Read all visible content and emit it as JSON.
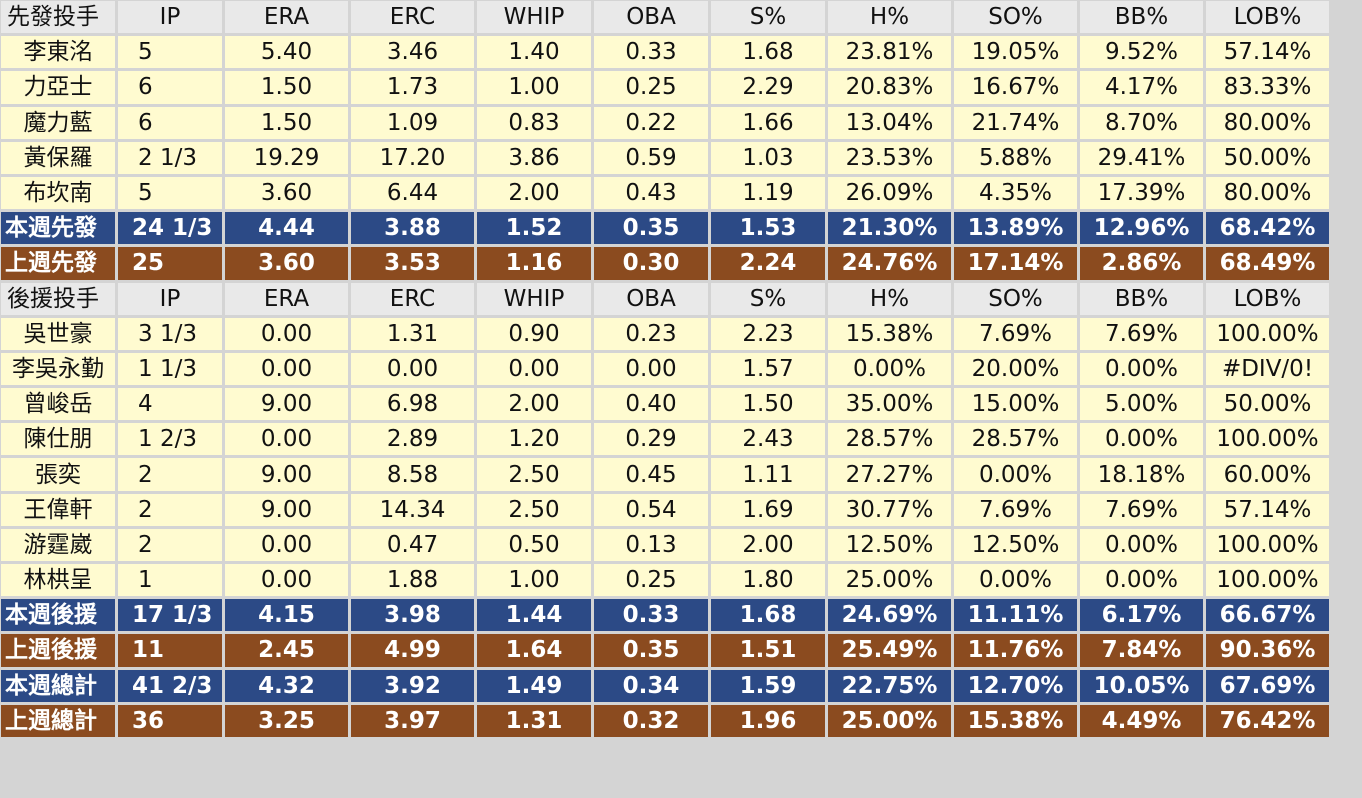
{
  "header_labels": [
    "IP",
    "ERA",
    "ERC",
    "WHIP",
    "OBA",
    "S%",
    "H%",
    "SO%",
    "BB%",
    "LOB%"
  ],
  "rows": [
    {
      "type": "header",
      "cells": [
        "先發投手",
        "IP",
        "ERA",
        "ERC",
        "WHIP",
        "OBA",
        "S%",
        "H%",
        "SO%",
        "BB%",
        "LOB%"
      ]
    },
    {
      "type": "player",
      "cells": [
        "李東洺",
        "5",
        "5.40",
        "3.46",
        "1.40",
        "0.33",
        "1.68",
        "23.81%",
        "19.05%",
        "9.52%",
        "57.14%"
      ]
    },
    {
      "type": "player",
      "cells": [
        "力亞士",
        "6",
        "1.50",
        "1.73",
        "1.00",
        "0.25",
        "2.29",
        "20.83%",
        "16.67%",
        "4.17%",
        "83.33%"
      ]
    },
    {
      "type": "player",
      "cells": [
        "魔力藍",
        "6",
        "1.50",
        "1.09",
        "0.83",
        "0.22",
        "1.66",
        "13.04%",
        "21.74%",
        "8.70%",
        "80.00%"
      ]
    },
    {
      "type": "player",
      "cells": [
        "黃保羅",
        "2 1/3",
        "19.29",
        "17.20",
        "3.86",
        "0.59",
        "1.03",
        "23.53%",
        "5.88%",
        "29.41%",
        "50.00%"
      ]
    },
    {
      "type": "player",
      "cells": [
        "布坎南",
        "5",
        "3.60",
        "6.44",
        "2.00",
        "0.43",
        "1.19",
        "26.09%",
        "4.35%",
        "17.39%",
        "80.00%"
      ]
    },
    {
      "type": "blue",
      "cells": [
        "本週先發",
        "24 1/3",
        "4.44",
        "3.88",
        "1.52",
        "0.35",
        "1.53",
        "21.30%",
        "13.89%",
        "12.96%",
        "68.42%"
      ]
    },
    {
      "type": "brown",
      "cells": [
        "上週先發",
        "25",
        "3.60",
        "3.53",
        "1.16",
        "0.30",
        "2.24",
        "24.76%",
        "17.14%",
        "2.86%",
        "68.49%"
      ]
    },
    {
      "type": "header",
      "cells": [
        "後援投手",
        "IP",
        "ERA",
        "ERC",
        "WHIP",
        "OBA",
        "S%",
        "H%",
        "SO%",
        "BB%",
        "LOB%"
      ]
    },
    {
      "type": "player",
      "cells": [
        "吳世豪",
        "3 1/3",
        "0.00",
        "1.31",
        "0.90",
        "0.23",
        "2.23",
        "15.38%",
        "7.69%",
        "7.69%",
        "100.00%"
      ]
    },
    {
      "type": "player",
      "cells": [
        "李吳永勤",
        "1 1/3",
        "0.00",
        "0.00",
        "0.00",
        "0.00",
        "1.57",
        "0.00%",
        "20.00%",
        "0.00%",
        "#DIV/0!"
      ]
    },
    {
      "type": "player",
      "cells": [
        "曾峻岳",
        "4",
        "9.00",
        "6.98",
        "2.00",
        "0.40",
        "1.50",
        "35.00%",
        "15.00%",
        "5.00%",
        "50.00%"
      ]
    },
    {
      "type": "player",
      "cells": [
        "陳仕朋",
        "1 2/3",
        "0.00",
        "2.89",
        "1.20",
        "0.29",
        "2.43",
        "28.57%",
        "28.57%",
        "0.00%",
        "100.00%"
      ]
    },
    {
      "type": "player",
      "cells": [
        "張奕",
        "2",
        "9.00",
        "8.58",
        "2.50",
        "0.45",
        "1.11",
        "27.27%",
        "0.00%",
        "18.18%",
        "60.00%"
      ]
    },
    {
      "type": "player",
      "cells": [
        "王偉軒",
        "2",
        "9.00",
        "14.34",
        "2.50",
        "0.54",
        "1.69",
        "30.77%",
        "7.69%",
        "7.69%",
        "57.14%"
      ]
    },
    {
      "type": "player",
      "cells": [
        "游霆崴",
        "2",
        "0.00",
        "0.47",
        "0.50",
        "0.13",
        "2.00",
        "12.50%",
        "12.50%",
        "0.00%",
        "100.00%"
      ]
    },
    {
      "type": "player",
      "cells": [
        "林栱呈",
        "1",
        "0.00",
        "1.88",
        "1.00",
        "0.25",
        "1.80",
        "25.00%",
        "0.00%",
        "0.00%",
        "100.00%"
      ]
    },
    {
      "type": "blue",
      "cells": [
        "本週後援",
        "17 1/3",
        "4.15",
        "3.98",
        "1.44",
        "0.33",
        "1.68",
        "24.69%",
        "11.11%",
        "6.17%",
        "66.67%"
      ]
    },
    {
      "type": "brown",
      "cells": [
        "上週後援",
        "11",
        "2.45",
        "4.99",
        "1.64",
        "0.35",
        "1.51",
        "25.49%",
        "11.76%",
        "7.84%",
        "90.36%"
      ]
    },
    {
      "type": "blue",
      "cells": [
        "本週總計",
        "41 2/3",
        "4.32",
        "3.92",
        "1.49",
        "0.34",
        "1.59",
        "22.75%",
        "12.70%",
        "10.05%",
        "67.69%"
      ]
    },
    {
      "type": "brown",
      "cells": [
        "上週總計",
        "36",
        "3.25",
        "3.97",
        "1.31",
        "0.32",
        "1.96",
        "25.00%",
        "15.38%",
        "4.49%",
        "76.42%"
      ]
    }
  ],
  "colors": {
    "header_bg": "#e9e9e9",
    "player_bg": "#fffbd0",
    "this_week_bg": "#2c4a86",
    "last_week_bg": "#8b4b1f",
    "grid": "#d4d4d4"
  }
}
